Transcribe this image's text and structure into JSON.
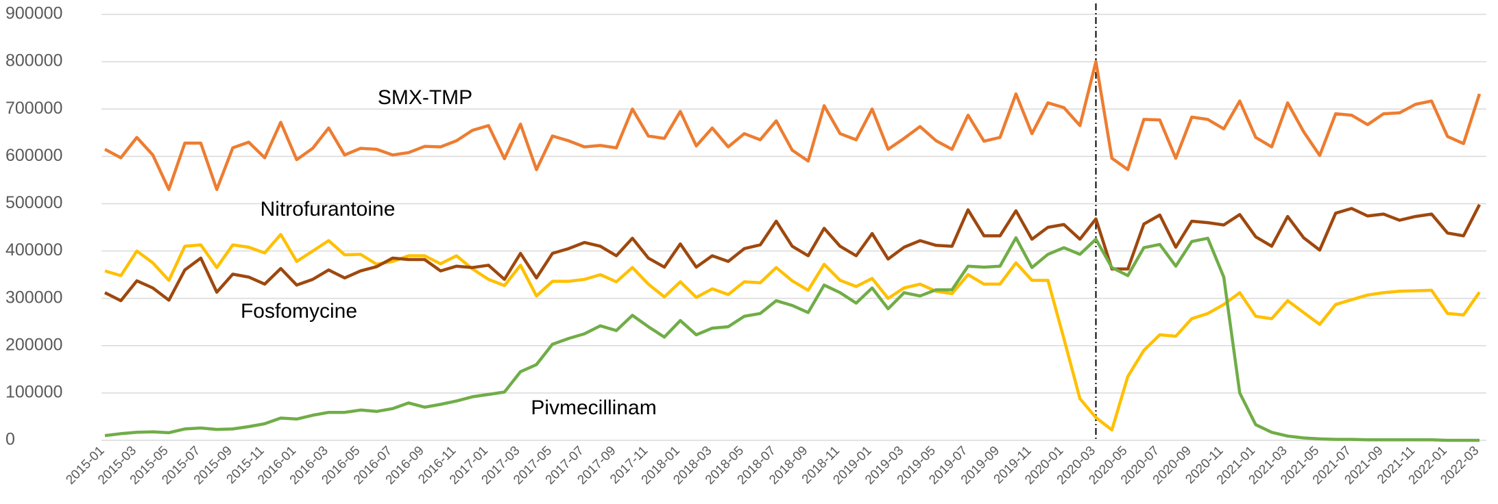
{
  "chart_data": {
    "type": "line",
    "categories": [
      "2015-01",
      null,
      "2015-03",
      null,
      "2015-05",
      null,
      "2015-07",
      null,
      "2015-09",
      null,
      "2015-11",
      null,
      "2016-01",
      null,
      "2016-03",
      null,
      "2016-05",
      null,
      "2016-07",
      null,
      "2016-09",
      null,
      "2016-11",
      null,
      "2017-01",
      null,
      "2017-03",
      null,
      "2017-05",
      null,
      "2017-07",
      null,
      "2017-09",
      null,
      "2017-11",
      null,
      "2018-01",
      null,
      "2018-03",
      null,
      "2018-05",
      null,
      "2018-07",
      null,
      "2018-09",
      null,
      "2018-11",
      null,
      "2019-01",
      null,
      "2019-03",
      null,
      "2019-05",
      null,
      "2019-07",
      null,
      "2019-09",
      null,
      "2019-11",
      null,
      "2020-01",
      null,
      "2020-03",
      null,
      "2020-05",
      null,
      "2020-07",
      null,
      "2020-09",
      null,
      "2020-11",
      null,
      "2021-01",
      null,
      "2021-03",
      null,
      "2021-05",
      null,
      "2021-07",
      null,
      "2021-09",
      null,
      "2021-11",
      null,
      "2022-01",
      null,
      "2022-03"
    ],
    "series": [
      {
        "name": "SMX-TMP",
        "color": "#ed7d31",
        "values": [
          615000,
          597000,
          640000,
          603000,
          530000,
          628000,
          628000,
          530000,
          618000,
          630000,
          597000,
          672000,
          593000,
          617000,
          660000,
          603000,
          617000,
          615000,
          603000,
          608000,
          621000,
          620000,
          633000,
          655000,
          665000,
          595000,
          668000,
          572000,
          643000,
          633000,
          620000,
          623000,
          618000,
          700000,
          643000,
          638000,
          695000,
          622000,
          660000,
          620000,
          648000,
          635000,
          675000,
          613000,
          590000,
          707000,
          648000,
          635000,
          700000,
          615000,
          638000,
          663000,
          633000,
          615000,
          687000,
          632000,
          640000,
          732000,
          648000,
          713000,
          703000,
          665000,
          800000,
          596000,
          572000,
          678000,
          677000,
          596000,
          683000,
          678000,
          658000,
          717000,
          640000,
          620000,
          713000,
          652000,
          602000,
          690000,
          687000,
          667000,
          690000,
          692000,
          710000,
          717000,
          642000,
          627000,
          732000
        ]
      },
      {
        "name": "Nitrofurantoine",
        "color": "#ffc000",
        "values": [
          358000,
          348000,
          400000,
          375000,
          338000,
          410000,
          413000,
          365000,
          413000,
          408000,
          396000,
          435000,
          378000,
          400000,
          422000,
          392000,
          393000,
          372000,
          378000,
          390000,
          390000,
          373000,
          390000,
          362000,
          340000,
          327000,
          370000,
          305000,
          336000,
          336000,
          340000,
          350000,
          335000,
          365000,
          330000,
          303000,
          335000,
          302000,
          320000,
          308000,
          335000,
          333000,
          365000,
          337000,
          317000,
          372000,
          338000,
          325000,
          342000,
          300000,
          322000,
          330000,
          315000,
          310000,
          350000,
          330000,
          330000,
          375000,
          338000,
          338000,
          215000,
          88000,
          48000,
          22000,
          135000,
          190000,
          223000,
          220000,
          257000,
          268000,
          287000,
          312000,
          262000,
          257000,
          295000,
          270000,
          245000,
          287000,
          297000,
          307000,
          312000,
          315000,
          316000,
          317000,
          268000,
          265000,
          313000
        ]
      },
      {
        "name": "Fosfomycine",
        "color": "#9e480e",
        "values": [
          312000,
          295000,
          337000,
          322000,
          296000,
          360000,
          385000,
          313000,
          351000,
          345000,
          330000,
          363000,
          328000,
          340000,
          360000,
          343000,
          358000,
          367000,
          385000,
          382000,
          382000,
          358000,
          368000,
          365000,
          370000,
          340000,
          395000,
          343000,
          395000,
          405000,
          418000,
          410000,
          390000,
          427000,
          385000,
          366000,
          415000,
          366000,
          390000,
          378000,
          405000,
          413000,
          463000,
          410000,
          390000,
          448000,
          410000,
          390000,
          437000,
          383000,
          408000,
          422000,
          412000,
          410000,
          487000,
          432000,
          432000,
          485000,
          425000,
          450000,
          456000,
          425000,
          468000,
          362000,
          362000,
          457000,
          476000,
          408000,
          463000,
          460000,
          455000,
          477000,
          430000,
          410000,
          473000,
          428000,
          402000,
          480000,
          490000,
          474000,
          478000,
          465000,
          473000,
          478000,
          438000,
          432000,
          498000
        ]
      },
      {
        "name": "Pivmecillinam",
        "color": "#70ad47",
        "values": [
          10000,
          14000,
          17000,
          18000,
          16000,
          24000,
          26000,
          23000,
          24000,
          29000,
          35000,
          47000,
          45000,
          53000,
          59000,
          59000,
          64000,
          61000,
          67000,
          79000,
          70000,
          76000,
          83000,
          92000,
          97000,
          102000,
          145000,
          160000,
          203000,
          215000,
          225000,
          242000,
          232000,
          264000,
          240000,
          218000,
          253000,
          223000,
          237000,
          240000,
          262000,
          268000,
          295000,
          285000,
          270000,
          328000,
          312000,
          290000,
          322000,
          278000,
          312000,
          305000,
          318000,
          318000,
          368000,
          366000,
          368000,
          428000,
          365000,
          393000,
          407000,
          393000,
          425000,
          365000,
          348000,
          407000,
          414000,
          368000,
          420000,
          427000,
          345000,
          100000,
          33000,
          17000,
          9000,
          5000,
          3000,
          2000,
          2000,
          1000,
          1000,
          1000,
          1000,
          1000,
          0,
          0,
          0
        ]
      }
    ],
    "ylim": [
      0,
      900000
    ],
    "yticks": [
      0,
      100000,
      200000,
      300000,
      400000,
      500000,
      600000,
      700000,
      800000,
      900000
    ],
    "grid": true
  }
}
